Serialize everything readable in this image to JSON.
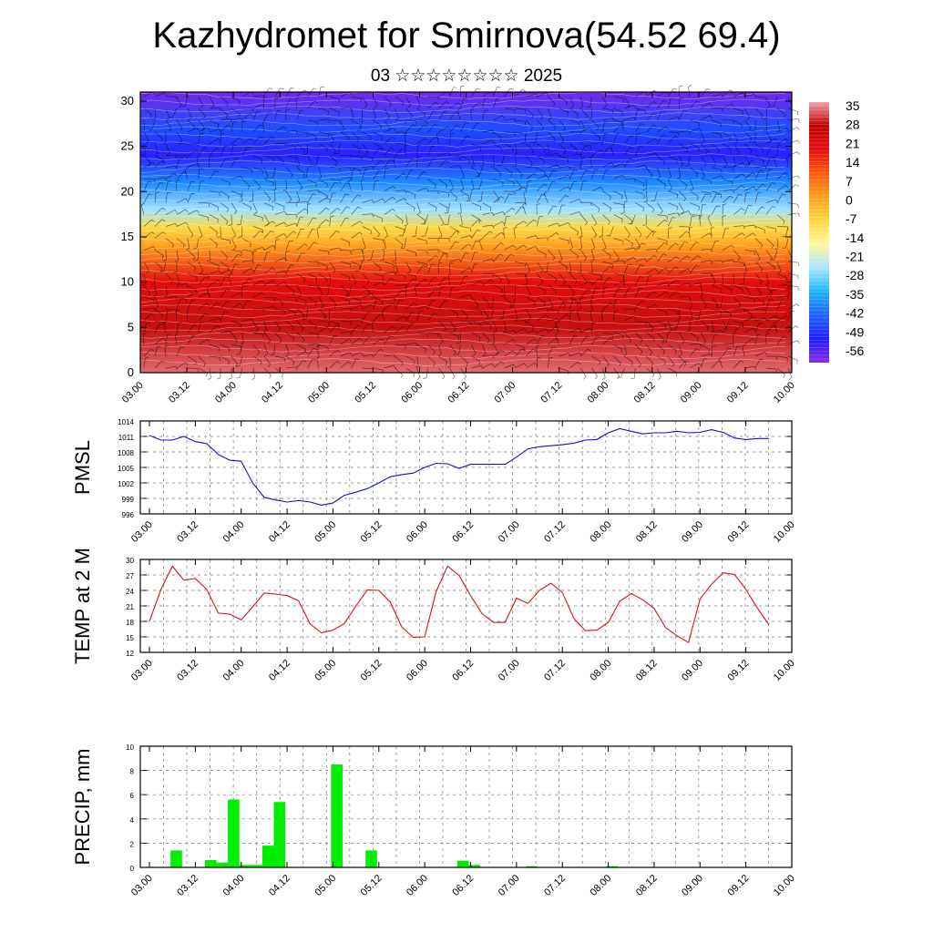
{
  "header": {
    "title": "Kazhydromet for Smirnova(54.52 69.4)",
    "subtitle": "03 ☆☆☆☆☆☆☆☆ 2025"
  },
  "chart_data": [
    {
      "type": "heatmap",
      "title": "",
      "y_ticks": [
        "0",
        "5",
        "10",
        "15",
        "20",
        "25",
        "30"
      ],
      "ylim": [
        0,
        31
      ],
      "x_ticks": [
        "03.00",
        "03.12",
        "04.00",
        "04.12",
        "05.00",
        "05.12",
        "06.00",
        "06.12",
        "07.00",
        "07.12",
        "08.00",
        "08.12",
        "09.00",
        "09.12",
        "10.00"
      ],
      "colorbar": {
        "labels": [
          "35",
          "28",
          "21",
          "14",
          "7",
          "0",
          "-7",
          "-14",
          "-21",
          "-28",
          "-35",
          "-42",
          "-49",
          "-56"
        ],
        "range": [
          -60,
          38
        ],
        "colors": [
          "#8a2be2",
          "#1f1fff",
          "#1e64ff",
          "#1fb4ff",
          "#a8e6ff",
          "#fff8a0",
          "#ffd740",
          "#ff9e1e",
          "#ff5a10",
          "#e60f0f",
          "#c00000",
          "#f0a0a8"
        ]
      },
      "profile": [
        {
          "height": 0,
          "value": 35
        },
        {
          "height": 5,
          "value": 30
        },
        {
          "height": 10,
          "value": 21
        },
        {
          "height": 14,
          "value": 2
        },
        {
          "height": 16,
          "value": -7
        },
        {
          "height": 18,
          "value": -25
        },
        {
          "height": 21,
          "value": -38
        },
        {
          "height": 24,
          "value": -52
        },
        {
          "height": 27,
          "value": -45
        },
        {
          "height": 31,
          "value": -58
        }
      ],
      "overlay": "wind barbs"
    },
    {
      "type": "line",
      "ylabel": "PMSL",
      "y_ticks": [
        "996",
        "999",
        "1002",
        "1005",
        "1008",
        "1011",
        "1014"
      ],
      "ylim": [
        996,
        1014
      ],
      "x_ticks": [
        "03.00",
        "03.12",
        "04.00",
        "04.12",
        "05.00",
        "05.12",
        "06.00",
        "06.12",
        "07.00",
        "07.12",
        "08.00",
        "08.12",
        "09.00",
        "09.12",
        "10.00"
      ],
      "color": "#1010d0",
      "x_hours": [
        0,
        3,
        6,
        9,
        12,
        15,
        18,
        21,
        24,
        27,
        30,
        33,
        36,
        39,
        42,
        45,
        48,
        51,
        54,
        57,
        60,
        63,
        66,
        69,
        72,
        75,
        78,
        81,
        84,
        87,
        90,
        93,
        96,
        99,
        102,
        105,
        108,
        111,
        114,
        117,
        120,
        123,
        126,
        129,
        132,
        135,
        138,
        141,
        144,
        147,
        150,
        153,
        156,
        159,
        162
      ],
      "values": [
        1011.2,
        1010.3,
        1010.3,
        1011,
        1010,
        1009.6,
        1007.5,
        1006.4,
        1006.2,
        1002,
        999.2,
        998.7,
        998.3,
        998.6,
        998.3,
        997.7,
        998.1,
        999.6,
        1000.2,
        1000.9,
        1002,
        1003.2,
        1003.6,
        1003.9,
        1005,
        1005.8,
        1005.7,
        1004.8,
        1005.6,
        1005.6,
        1005.6,
        1005.6,
        1007,
        1008.6,
        1009,
        1009.2,
        1009.4,
        1009.7,
        1010.3,
        1010.4,
        1011.7,
        1012.5,
        1012,
        1011.5,
        1011.7,
        1011.7,
        1012,
        1011.7,
        1011.8,
        1012.3,
        1011.8,
        1010.7,
        1010.4,
        1010.6,
        1010.6
      ]
    },
    {
      "type": "line",
      "ylabel": "TEMP at 2 M",
      "y_ticks": [
        "12",
        "15",
        "18",
        "21",
        "24",
        "27",
        "30"
      ],
      "ylim": [
        12,
        30
      ],
      "x_ticks": [
        "03.00",
        "03.12",
        "04.00",
        "04.12",
        "05.00",
        "05.12",
        "06.00",
        "06.12",
        "07.00",
        "07.12",
        "08.00",
        "08.12",
        "09.00",
        "09.12",
        "10.00"
      ],
      "color": "#e01010",
      "x_hours": [
        0,
        3,
        6,
        9,
        12,
        15,
        18,
        21,
        24,
        27,
        30,
        33,
        36,
        39,
        42,
        45,
        48,
        51,
        54,
        57,
        60,
        63,
        66,
        69,
        72,
        75,
        78,
        81,
        84,
        87,
        90,
        93,
        96,
        99,
        102,
        105,
        108,
        111,
        114,
        117,
        120,
        123,
        126,
        129,
        132,
        135,
        138,
        141,
        144,
        147,
        150,
        153,
        156,
        159,
        162
      ],
      "values": [
        18,
        24.2,
        28.7,
        26,
        26.3,
        24.2,
        19.6,
        19.4,
        18.3,
        20.8,
        23.5,
        23.3,
        23,
        22,
        17.5,
        15.8,
        16.3,
        17.6,
        21,
        24.1,
        24,
        21.7,
        16.9,
        14.9,
        15,
        23.8,
        28.7,
        26.9,
        23,
        19.5,
        17.8,
        17.8,
        22.5,
        21.5,
        24,
        25.4,
        23.6,
        18.6,
        16.2,
        16.3,
        17.8,
        21.9,
        23.4,
        22.2,
        20.5,
        16.8,
        15.2,
        13.9,
        22.3,
        25.2,
        27.4,
        27.1,
        24.2,
        20.6,
        17.4
      ]
    },
    {
      "type": "bar",
      "ylabel": "PRECIP, mm",
      "y_ticks": [
        "0",
        "2",
        "4",
        "6",
        "8",
        "10"
      ],
      "ylim": [
        0,
        10
      ],
      "x_ticks": [
        "03.00",
        "03.12",
        "04.00",
        "04.12",
        "05.00",
        "05.12",
        "06.00",
        "06.12",
        "07.00",
        "07.12",
        "08.00",
        "08.12",
        "09.00",
        "09.12",
        "10.00"
      ],
      "color": "#00ee00",
      "bars": [
        {
          "hour": 6,
          "value": 1.4
        },
        {
          "hour": 15,
          "value": 0.6
        },
        {
          "hour": 18,
          "value": 0.4
        },
        {
          "hour": 21,
          "value": 5.6
        },
        {
          "hour": 24,
          "value": 0.2
        },
        {
          "hour": 27,
          "value": 0.2
        },
        {
          "hour": 30,
          "value": 1.8
        },
        {
          "hour": 33,
          "value": 5.4
        },
        {
          "hour": 48,
          "value": 8.5
        },
        {
          "hour": 57,
          "value": 1.4
        },
        {
          "hour": 81,
          "value": 0.55
        },
        {
          "hour": 84,
          "value": 0.2
        },
        {
          "hour": 99,
          "value": 0.1
        },
        {
          "hour": 120,
          "value": 0.1
        }
      ]
    }
  ]
}
